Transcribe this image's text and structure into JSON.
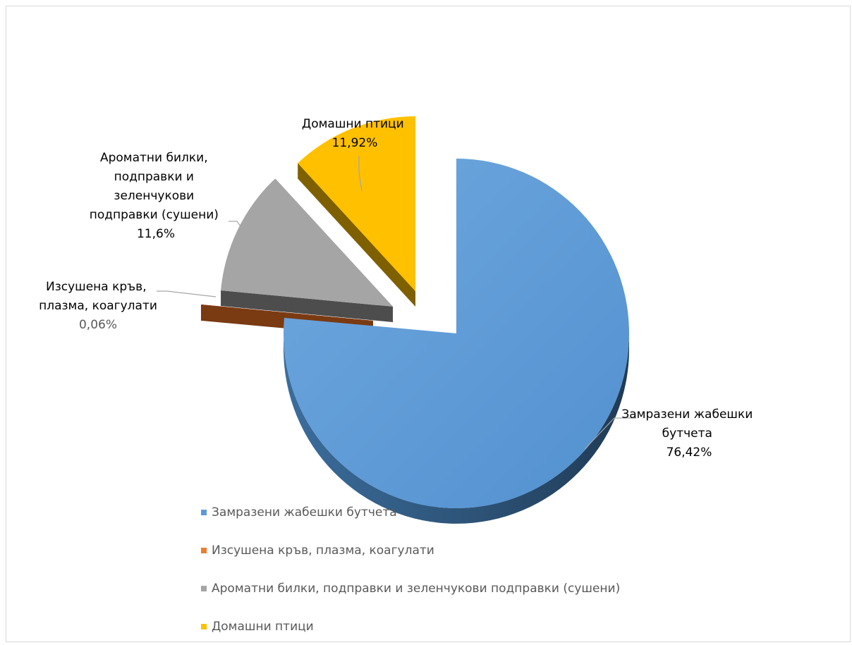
{
  "chart_data": {
    "type": "pie",
    "title": "",
    "series": [
      {
        "name": "",
        "categories": [
          "Замразени жабешки бутчета",
          "Изсушена кръв, плазма, коагулати",
          "Ароматни билки, подправки и зеленчукови подправки (сушени)",
          "Домашни птици"
        ],
        "values": [
          76.42,
          0.06,
          11.6,
          11.92
        ],
        "value_labels": [
          "76,42%",
          "0,06%",
          "11,6%",
          "11,92%"
        ]
      }
    ],
    "data_labels": [
      {
        "lines": [
          "Замразени жабешки",
          "бутчета"
        ],
        "value": "76,42%"
      },
      {
        "lines": [
          "Изсушена кръв,",
          "плазма, коагулати"
        ],
        "value": "0,06%"
      },
      {
        "lines": [
          "Ароматни билки,",
          "подправки и",
          "зеленчукови",
          "подправки (сушени)"
        ],
        "value": "11,6%"
      },
      {
        "lines": [
          "Домашни птици"
        ],
        "value": "11,92%"
      }
    ],
    "legend": {
      "position": "bottom",
      "items": [
        "Замразени жабешки бутчета",
        "Изсушена кръв, плазма, коагулати",
        "Ароматни билки, подправки и зеленчукови подправки (сушени)",
        "Домашни птици"
      ]
    },
    "colors": [
      "#5b9bd5",
      "#ed7d31",
      "#a5a5a5",
      "#ffc000"
    ],
    "style": "3d-exploded-pie"
  }
}
